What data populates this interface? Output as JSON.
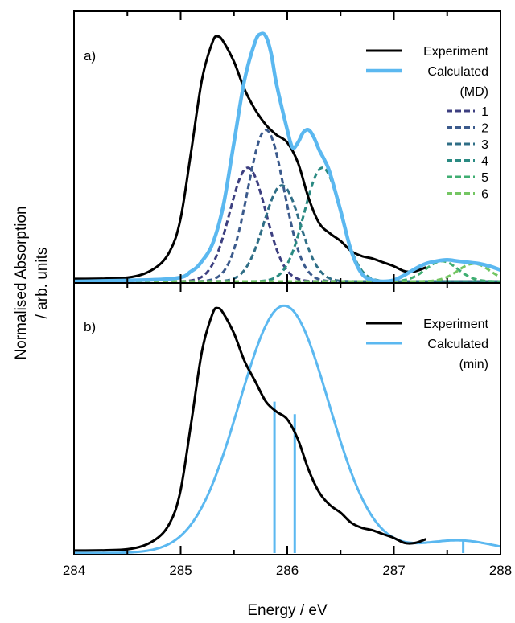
{
  "ylabel_line1": "Normalised Absorption",
  "ylabel_line2": "/ arb. units",
  "xlabel": "Energy / eV",
  "chart_data": [
    {
      "panel_label": "a)",
      "type": "line",
      "xlim": [
        284,
        288
      ],
      "ylim": [
        0,
        1.0
      ],
      "x_ticks": [
        "284",
        "285",
        "286",
        "287",
        "288"
      ],
      "legend": {
        "placement": "top-right",
        "entries": [
          "Experiment",
          "Calculated"
        ],
        "subtitle": "(MD)",
        "component_entries": [
          "1",
          "2",
          "3",
          "4",
          "5",
          "6"
        ]
      },
      "experiment": {
        "name": "Experiment",
        "color": "#000000",
        "x": [
          284.0,
          284.5,
          284.75,
          284.9,
          285.0,
          285.1,
          285.2,
          285.3,
          285.35,
          285.4,
          285.5,
          285.6,
          285.7,
          285.8,
          285.9,
          286.0,
          286.1,
          286.2,
          286.3,
          286.4,
          286.5,
          286.6,
          286.7,
          286.8,
          286.9,
          287.0,
          287.1,
          287.2,
          287.3
        ],
        "y": [
          0.01,
          0.015,
          0.05,
          0.12,
          0.25,
          0.52,
          0.8,
          0.95,
          0.97,
          0.95,
          0.87,
          0.76,
          0.68,
          0.62,
          0.58,
          0.55,
          0.47,
          0.33,
          0.23,
          0.19,
          0.16,
          0.12,
          0.1,
          0.09,
          0.075,
          0.06,
          0.04,
          0.04,
          0.055
        ]
      },
      "calculated": {
        "name": "Calculated",
        "color": "#5bb8f0",
        "x": [
          284.0,
          284.9,
          285.1,
          285.2,
          285.3,
          285.4,
          285.5,
          285.6,
          285.7,
          285.75,
          285.8,
          285.85,
          285.9,
          286.0,
          286.05,
          286.1,
          286.15,
          286.2,
          286.25,
          286.3,
          286.35,
          286.4,
          286.5,
          286.6,
          286.7,
          286.8,
          286.9,
          287.0,
          287.1,
          287.2,
          287.3,
          287.4,
          287.5,
          287.6,
          287.7,
          287.8,
          287.9,
          288.0
        ],
        "y": [
          0.0,
          0.01,
          0.04,
          0.08,
          0.15,
          0.3,
          0.55,
          0.8,
          0.95,
          0.98,
          0.97,
          0.9,
          0.78,
          0.6,
          0.53,
          0.55,
          0.59,
          0.6,
          0.57,
          0.52,
          0.48,
          0.43,
          0.28,
          0.12,
          0.03,
          0.005,
          0.0,
          0.005,
          0.025,
          0.05,
          0.07,
          0.08,
          0.085,
          0.08,
          0.075,
          0.07,
          0.06,
          0.045
        ]
      },
      "components": [
        {
          "name": "1",
          "color": "#3d3f80",
          "center": 285.63,
          "height": 0.45,
          "sigma": 0.17
        },
        {
          "name": "2",
          "color": "#3b5a8c",
          "center": 285.8,
          "height": 0.6,
          "sigma": 0.17
        },
        {
          "name": "3",
          "color": "#2f6e86",
          "center": 285.95,
          "height": 0.38,
          "sigma": 0.17
        },
        {
          "name": "4",
          "color": "#2a8a82",
          "center": 286.33,
          "height": 0.45,
          "sigma": 0.17
        },
        {
          "name": "5",
          "color": "#3fae72",
          "center": 287.45,
          "height": 0.08,
          "sigma": 0.15
        },
        {
          "name": "6",
          "color": "#74c663",
          "center": 287.75,
          "height": 0.07,
          "sigma": 0.15
        }
      ]
    },
    {
      "panel_label": "b)",
      "type": "line",
      "xlim": [
        284,
        288
      ],
      "ylim": [
        0,
        1.0
      ],
      "x_ticks": [
        "284",
        "285",
        "286",
        "287",
        "288"
      ],
      "legend": {
        "placement": "top-right",
        "entries": [
          "Experiment",
          "Calculated"
        ],
        "subtitle": "(min)"
      },
      "experiment": {
        "name": "Experiment",
        "color": "#000000",
        "x": [
          284.0,
          284.5,
          284.75,
          284.9,
          285.0,
          285.1,
          285.2,
          285.3,
          285.35,
          285.4,
          285.5,
          285.6,
          285.7,
          285.8,
          285.9,
          286.0,
          286.1,
          286.2,
          286.3,
          286.4,
          286.5,
          286.6,
          286.7,
          286.8,
          286.9,
          287.0,
          287.1,
          287.2,
          287.3
        ],
        "y": [
          0.01,
          0.015,
          0.05,
          0.12,
          0.25,
          0.52,
          0.8,
          0.95,
          0.97,
          0.95,
          0.87,
          0.76,
          0.68,
          0.6,
          0.56,
          0.53,
          0.45,
          0.33,
          0.24,
          0.19,
          0.16,
          0.12,
          0.1,
          0.09,
          0.075,
          0.06,
          0.04,
          0.04,
          0.055
        ]
      },
      "calculated": {
        "name": "Calculated",
        "color": "#5bb8f0",
        "gaussian_center": 285.97,
        "gaussian_sigma": 0.42,
        "peak_height": 0.98,
        "tail_level": 0.05
      },
      "stick_lines": [
        {
          "x": 285.88,
          "height": 0.6
        },
        {
          "x": 286.07,
          "height": 0.55
        },
        {
          "x": 287.65,
          "height": 0.05
        }
      ]
    }
  ]
}
